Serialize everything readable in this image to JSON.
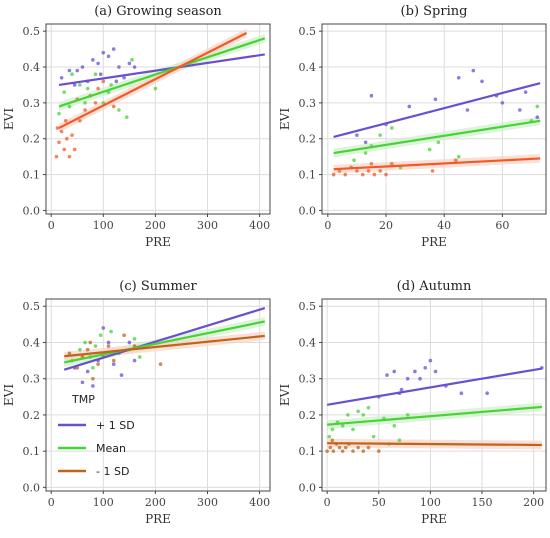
{
  "colors": {
    "plus": "#6a4fd0",
    "mean": "#46d335",
    "minus": "#f25a25",
    "minus_c": "#c0641a",
    "grid": "#dcdcdc",
    "frame": "#444444",
    "band_mean": "#cfeecb",
    "band_minus": "#f8d3c6"
  },
  "chart_data": [
    {
      "type": "scatter",
      "title": "(a) Growing season",
      "xlabel": "PRE",
      "ylabel": "EVI",
      "xlim": [
        -10,
        420
      ],
      "ylim": [
        -0.01,
        0.52
      ],
      "xticks": [
        0,
        100,
        200,
        300,
        400
      ],
      "yticks": [
        0.0,
        0.1,
        0.2,
        0.3,
        0.4,
        0.5
      ],
      "ytick_labels": [
        "0.0",
        "0.1",
        "0.2",
        "0.3",
        "0.4",
        "0.5"
      ],
      "grid": true,
      "series": [
        {
          "key": "plus",
          "line": [
            [
              15,
              0.35
            ],
            [
              410,
              0.435
            ]
          ],
          "points": [
            [
              20,
              0.37
            ],
            [
              35,
              0.39
            ],
            [
              50,
              0.39
            ],
            [
              60,
              0.4
            ],
            [
              70,
              0.36
            ],
            [
              80,
              0.42
            ],
            [
              90,
              0.41
            ],
            [
              100,
              0.44
            ],
            [
              110,
              0.43
            ],
            [
              120,
              0.45
            ],
            [
              130,
              0.4
            ],
            [
              140,
              0.37
            ],
            [
              150,
              0.41
            ],
            [
              160,
              0.4
            ],
            [
              45,
              0.35
            ],
            [
              95,
              0.38
            ],
            [
              125,
              0.36
            ]
          ]
        },
        {
          "key": "mean",
          "line": [
            [
              15,
              0.29
            ],
            [
              410,
              0.48
            ]
          ],
          "points": [
            [
              15,
              0.27
            ],
            [
              25,
              0.33
            ],
            [
              40,
              0.38
            ],
            [
              55,
              0.35
            ],
            [
              70,
              0.34
            ],
            [
              85,
              0.38
            ],
            [
              100,
              0.3
            ],
            [
              115,
              0.35
            ],
            [
              130,
              0.28
            ],
            [
              145,
              0.26
            ],
            [
              155,
              0.42
            ],
            [
              200,
              0.34
            ],
            [
              35,
              0.29
            ],
            [
              65,
              0.3
            ],
            [
              110,
              0.33
            ]
          ]
        },
        {
          "key": "minus",
          "line": [
            [
              15,
              0.23
            ],
            [
              375,
              0.495
            ]
          ],
          "points": [
            [
              10,
              0.15
            ],
            [
              15,
              0.19
            ],
            [
              20,
              0.22
            ],
            [
              25,
              0.17
            ],
            [
              30,
              0.2
            ],
            [
              35,
              0.15
            ],
            [
              40,
              0.21
            ],
            [
              45,
              0.17
            ],
            [
              55,
              0.25
            ],
            [
              65,
              0.28
            ],
            [
              75,
              0.32
            ],
            [
              85,
              0.3
            ],
            [
              100,
              0.36
            ],
            [
              120,
              0.29
            ],
            [
              12,
              0.23
            ],
            [
              28,
              0.25
            ],
            [
              50,
              0.31
            ],
            [
              90,
              0.34
            ]
          ]
        }
      ]
    },
    {
      "type": "scatter",
      "title": "(b) Spring",
      "xlabel": "PRE",
      "ylabel": "EVI",
      "xlim": [
        -2,
        75
      ],
      "ylim": [
        -0.01,
        0.52
      ],
      "xticks": [
        0,
        20,
        40,
        60
      ],
      "yticks": [
        0.0,
        0.1,
        0.2,
        0.3,
        0.4,
        0.5
      ],
      "ytick_labels": [
        "0.0",
        "0.1",
        "0.2",
        "0.3",
        "0.4",
        "0.5"
      ],
      "grid": true,
      "series": [
        {
          "key": "plus",
          "line": [
            [
              2,
              0.205
            ],
            [
              73,
              0.355
            ]
          ],
          "points": [
            [
              10,
              0.21
            ],
            [
              13,
              0.19
            ],
            [
              15,
              0.32
            ],
            [
              20,
              0.24
            ],
            [
              28,
              0.29
            ],
            [
              37,
              0.31
            ],
            [
              45,
              0.37
            ],
            [
              50,
              0.39
            ],
            [
              53,
              0.36
            ],
            [
              58,
              0.32
            ],
            [
              60,
              0.3
            ],
            [
              66,
              0.28
            ],
            [
              68,
              0.33
            ],
            [
              72,
              0.26
            ],
            [
              48,
              0.28
            ]
          ]
        },
        {
          "key": "mean",
          "line": [
            [
              2,
              0.16
            ],
            [
              73,
              0.25
            ]
          ],
          "points": [
            [
              9,
              0.14
            ],
            [
              13,
              0.16
            ],
            [
              15,
              0.18
            ],
            [
              18,
              0.21
            ],
            [
              22,
              0.23
            ],
            [
              35,
              0.17
            ],
            [
              38,
              0.19
            ],
            [
              45,
              0.15
            ],
            [
              72,
              0.29
            ],
            [
              70,
              0.25
            ],
            [
              25,
              0.12
            ]
          ]
        },
        {
          "key": "minus",
          "line": [
            [
              2,
              0.115
            ],
            [
              73,
              0.145
            ]
          ],
          "points": [
            [
              2,
              0.1
            ],
            [
              4,
              0.11
            ],
            [
              6,
              0.1
            ],
            [
              8,
              0.12
            ],
            [
              10,
              0.11
            ],
            [
              12,
              0.1
            ],
            [
              14,
              0.11
            ],
            [
              16,
              0.1
            ],
            [
              18,
              0.11
            ],
            [
              22,
              0.13
            ],
            [
              36,
              0.11
            ],
            [
              44,
              0.14
            ],
            [
              20,
              0.1
            ],
            [
              15,
              0.13
            ]
          ]
        }
      ]
    },
    {
      "type": "scatter",
      "title": "(c) Summer",
      "xlabel": "PRE",
      "ylabel": "EVI",
      "xlim": [
        -10,
        420
      ],
      "ylim": [
        -0.01,
        0.52
      ],
      "xticks": [
        0,
        100,
        200,
        300,
        400
      ],
      "yticks": [
        0.0,
        0.1,
        0.2,
        0.3,
        0.4,
        0.5
      ],
      "ytick_labels": [
        "0.0",
        "0.1",
        "0.2",
        "0.3",
        "0.4",
        "0.5"
      ],
      "grid": true,
      "series": [
        {
          "key": "plus",
          "line": [
            [
              25,
              0.325
            ],
            [
              410,
              0.495
            ]
          ],
          "points": [
            [
              60,
              0.29
            ],
            [
              70,
              0.32
            ],
            [
              80,
              0.28
            ],
            [
              90,
              0.35
            ],
            [
              100,
              0.44
            ],
            [
              110,
              0.4
            ],
            [
              120,
              0.34
            ],
            [
              135,
              0.31
            ],
            [
              150,
              0.4
            ],
            [
              160,
              0.35
            ],
            [
              45,
              0.33
            ],
            [
              105,
              0.37
            ]
          ]
        },
        {
          "key": "mean",
          "line": [
            [
              25,
              0.345
            ],
            [
              410,
              0.458
            ]
          ],
          "points": [
            [
              40,
              0.35
            ],
            [
              55,
              0.38
            ],
            [
              65,
              0.4
            ],
            [
              75,
              0.36
            ],
            [
              85,
              0.39
            ],
            [
              95,
              0.42
            ],
            [
              115,
              0.43
            ],
            [
              130,
              0.37
            ],
            [
              150,
              0.38
            ],
            [
              160,
              0.41
            ],
            [
              170,
              0.36
            ],
            [
              80,
              0.33
            ]
          ]
        },
        {
          "key": "minus_c",
          "line": [
            [
              25,
              0.362
            ],
            [
              410,
              0.418
            ]
          ],
          "points": [
            [
              35,
              0.37
            ],
            [
              50,
              0.33
            ],
            [
              60,
              0.36
            ],
            [
              70,
              0.38
            ],
            [
              80,
              0.3
            ],
            [
              90,
              0.34
            ],
            [
              100,
              0.36
            ],
            [
              110,
              0.39
            ],
            [
              120,
              0.35
            ],
            [
              140,
              0.42
            ],
            [
              160,
              0.39
            ],
            [
              210,
              0.34
            ],
            [
              75,
              0.4
            ]
          ]
        }
      ],
      "legend": {
        "title": "TMP",
        "placement": "bottom-left",
        "entries": [
          {
            "key": "plus",
            "label": "+ 1 SD"
          },
          {
            "key": "mean",
            "label": "Mean"
          },
          {
            "key": "minus_c",
            "label": "- 1 SD"
          }
        ]
      }
    },
    {
      "type": "scatter",
      "title": "(d) Autumn",
      "xlabel": "PRE",
      "ylabel": "EVI",
      "xlim": [
        -5,
        212
      ],
      "ylim": [
        -0.01,
        0.52
      ],
      "xticks": [
        0,
        50,
        100,
        150,
        200
      ],
      "yticks": [
        0.0,
        0.1,
        0.2,
        0.3,
        0.4,
        0.5
      ],
      "ytick_labels": [
        "0.0",
        "0.1",
        "0.2",
        "0.3",
        "0.4",
        "0.5"
      ],
      "grid": true,
      "series": [
        {
          "key": "plus",
          "line": [
            [
              0,
              0.228
            ],
            [
              208,
              0.328
            ]
          ],
          "points": [
            [
              50,
              0.25
            ],
            [
              58,
              0.31
            ],
            [
              65,
              0.32
            ],
            [
              72,
              0.27
            ],
            [
              78,
              0.3
            ],
            [
              85,
              0.32
            ],
            [
              90,
              0.3
            ],
            [
              95,
              0.33
            ],
            [
              100,
              0.35
            ],
            [
              105,
              0.32
            ],
            [
              115,
              0.28
            ],
            [
              130,
              0.26
            ],
            [
              155,
              0.26
            ],
            [
              208,
              0.33
            ],
            [
              70,
              0.26
            ]
          ]
        },
        {
          "key": "mean",
          "line": [
            [
              0,
              0.173
            ],
            [
              208,
              0.222
            ]
          ],
          "points": [
            [
              2,
              0.14
            ],
            [
              5,
              0.16
            ],
            [
              10,
              0.18
            ],
            [
              15,
              0.17
            ],
            [
              20,
              0.2
            ],
            [
              25,
              0.16
            ],
            [
              30,
              0.21
            ],
            [
              35,
              0.2
            ],
            [
              40,
              0.22
            ],
            [
              55,
              0.19
            ],
            [
              60,
              0.12
            ],
            [
              65,
              0.17
            ],
            [
              70,
              0.13
            ],
            [
              78,
              0.2
            ],
            [
              45,
              0.14
            ]
          ]
        },
        {
          "key": "minus_c",
          "line": [
            [
              0,
              0.122
            ],
            [
              208,
              0.117
            ]
          ],
          "points": [
            [
              0,
              0.1
            ],
            [
              3,
              0.11
            ],
            [
              6,
              0.1
            ],
            [
              9,
              0.12
            ],
            [
              12,
              0.11
            ],
            [
              15,
              0.1
            ],
            [
              18,
              0.11
            ],
            [
              21,
              0.12
            ],
            [
              25,
              0.1
            ],
            [
              30,
              0.11
            ],
            [
              35,
              0.1
            ],
            [
              40,
              0.11
            ],
            [
              50,
              0.1
            ],
            [
              5,
              0.13
            ]
          ]
        }
      ]
    }
  ]
}
